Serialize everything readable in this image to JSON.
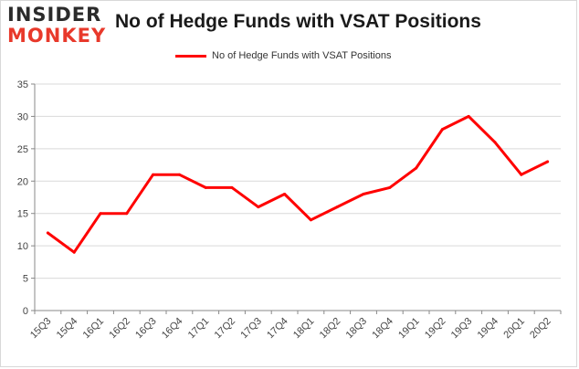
{
  "logo": {
    "line1": "INSIDER",
    "line2": "MONKEY"
  },
  "colors": {
    "series": "#ff0000",
    "grid": "#d9d9d9",
    "axis": "#888888",
    "logo_dark": "#2b2b2b",
    "logo_accent": "#e8392b"
  },
  "chart_data": {
    "type": "line",
    "title": "No of Hedge Funds with VSAT Positions",
    "xlabel": "",
    "ylabel": "",
    "ylim": [
      0,
      35
    ],
    "yticks": [
      0,
      5,
      10,
      15,
      20,
      25,
      30,
      35
    ],
    "grid": true,
    "legend_position": "top-center",
    "categories": [
      "15Q3",
      "15Q4",
      "16Q1",
      "16Q2",
      "16Q3",
      "16Q4",
      "17Q1",
      "17Q2",
      "17Q3",
      "17Q4",
      "18Q1",
      "18Q2",
      "18Q3",
      "18Q4",
      "19Q1",
      "19Q2",
      "19Q3",
      "19Q4",
      "20Q1",
      "20Q2"
    ],
    "series": [
      {
        "name": "No of Hedge Funds with VSAT Positions",
        "values": [
          12,
          9,
          15,
          15,
          21,
          21,
          19,
          19,
          16,
          18,
          14,
          16,
          18,
          19,
          22,
          28,
          30,
          26,
          21,
          23
        ]
      }
    ]
  }
}
